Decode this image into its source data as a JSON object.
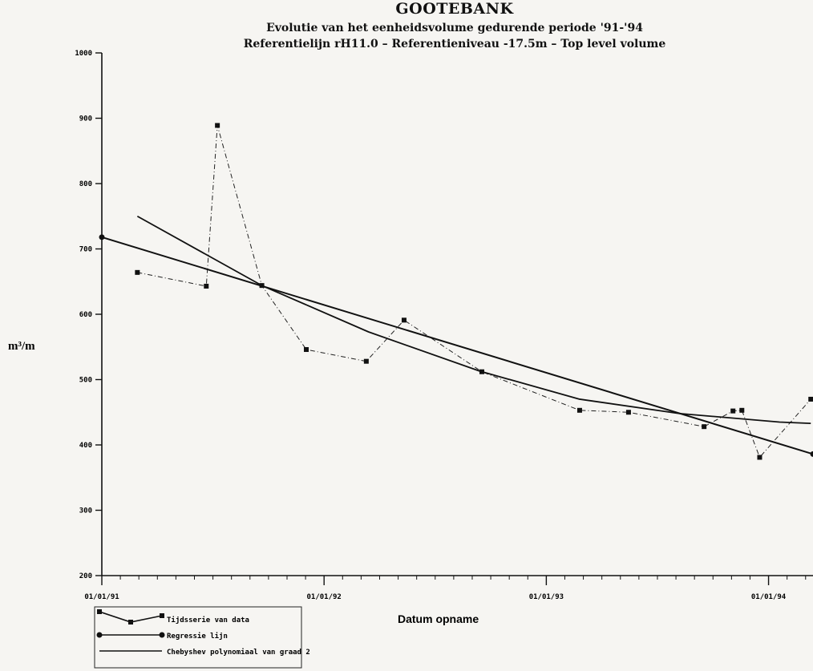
{
  "chart_data": {
    "type": "line",
    "title": "GOOTEBANK",
    "subtitle": "Evolutie van het eenheidsvolume gedurende periode '91-'94",
    "subtitle2": "Referentielijn rH11.0 – Referentieniveau -17.5m – Top level volume",
    "xlabel": "Datum opname",
    "ylabel": "m³/m",
    "ylim": [
      200,
      1000
    ],
    "yticks": [
      "200",
      "300",
      "400",
      "500",
      "600",
      "700",
      "800",
      "900",
      "1000"
    ],
    "xticks": [
      "01/01/91",
      "01/01/92",
      "01/01/93",
      "01/01/94"
    ],
    "xlim": [
      1991.0,
      1994.2
    ],
    "grid": false,
    "legend_position": "bottom-left",
    "series": [
      {
        "name": "Tijdsserie van data",
        "style": "dash-dot with square markers",
        "x": [
          1991.16,
          1991.47,
          1991.52,
          1991.72,
          1991.92,
          1992.19,
          1992.36,
          1992.71,
          1993.15,
          1993.37,
          1993.71,
          1993.84,
          1993.88,
          1993.96,
          1994.19
        ],
        "values": [
          664,
          643,
          889,
          644,
          546,
          528,
          591,
          512,
          453,
          450,
          428,
          452,
          453,
          381,
          470
        ]
      },
      {
        "name": "Regressie lijn",
        "style": "solid with circle markers",
        "x": [
          1991.0,
          1994.2
        ],
        "values": [
          718,
          386
        ]
      },
      {
        "name": "Chebyshev polynomiaal van graad 2",
        "style": "solid",
        "x": [
          1991.16,
          1991.72,
          1992.2,
          1992.7,
          1993.15,
          1993.6,
          1994.05,
          1994.19
        ],
        "values": [
          750,
          644,
          573,
          513,
          470,
          448,
          435,
          433
        ]
      }
    ]
  }
}
